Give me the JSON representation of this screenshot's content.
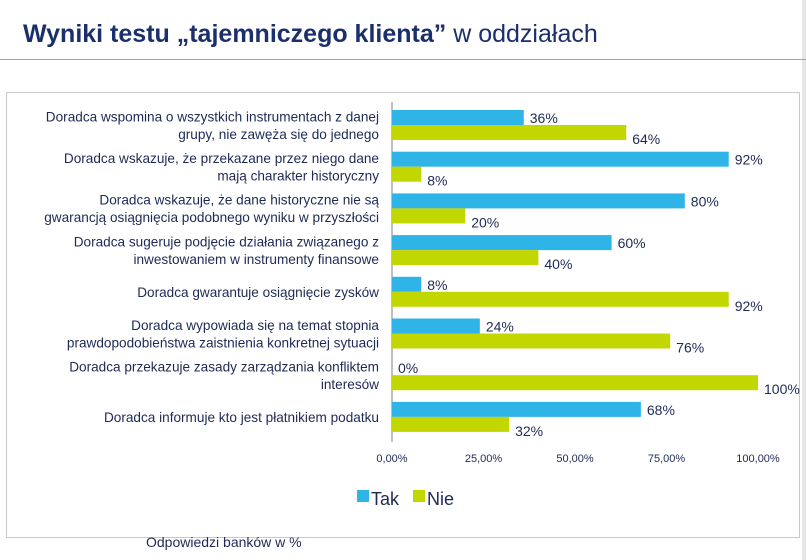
{
  "title": {
    "bold": "Wyniki testu „tajemniczego klienta”",
    "light": "w oddziałach"
  },
  "footnote": "Odpowiedzi banków w %",
  "colors": {
    "tak": "#2fb4e8",
    "nie": "#c2d600",
    "title": "#1b2f6b",
    "text": "#1e2a55"
  },
  "chart_data": {
    "type": "bar",
    "orientation": "horizontal",
    "categories": [
      [
        "Doradca wspomina o wszystkich instrumentach z danej",
        "grupy, nie zawęża się do jednego"
      ],
      [
        "Doradca wskazuje, że przekazane przez niego dane",
        "mają charakter historyczny"
      ],
      [
        "Doradca wskazuje, że dane historyczne nie są",
        "gwarancją osiągnięcia podobnego wyniku w przyszłości"
      ],
      [
        "Doradca sugeruje podjęcie działania związanego z",
        "inwestowaniem w instrumenty finansowe"
      ],
      [
        "Doradca gwarantuje osiągnięcie zysków"
      ],
      [
        "Doradca wypowiada się na temat stopnia",
        "prawdopodobieństwa zaistnienia konkretnej sytuacji"
      ],
      [
        "Doradca przekazuje zasady zarządzania konfliktem",
        "interesów"
      ],
      [
        "Doradca informuje kto jest płatnikiem podatku"
      ]
    ],
    "series": [
      {
        "name": "Tak",
        "values": [
          36,
          92,
          80,
          60,
          8,
          24,
          0,
          68
        ],
        "labels": [
          "36%",
          "92%",
          "80%",
          "60%",
          "8%",
          "24%",
          "0%",
          "68%"
        ]
      },
      {
        "name": "Nie",
        "values": [
          64,
          8,
          20,
          40,
          92,
          76,
          100,
          32
        ],
        "labels": [
          "64%",
          "8%",
          "20%",
          "40%",
          "92%",
          "76%",
          "100%",
          "32%"
        ]
      }
    ],
    "xlim": [
      0,
      100
    ],
    "xticks": [
      "0,00%",
      "25,00%",
      "50,00%",
      "75,00%",
      "100,00%"
    ],
    "legend_position": "bottom"
  }
}
